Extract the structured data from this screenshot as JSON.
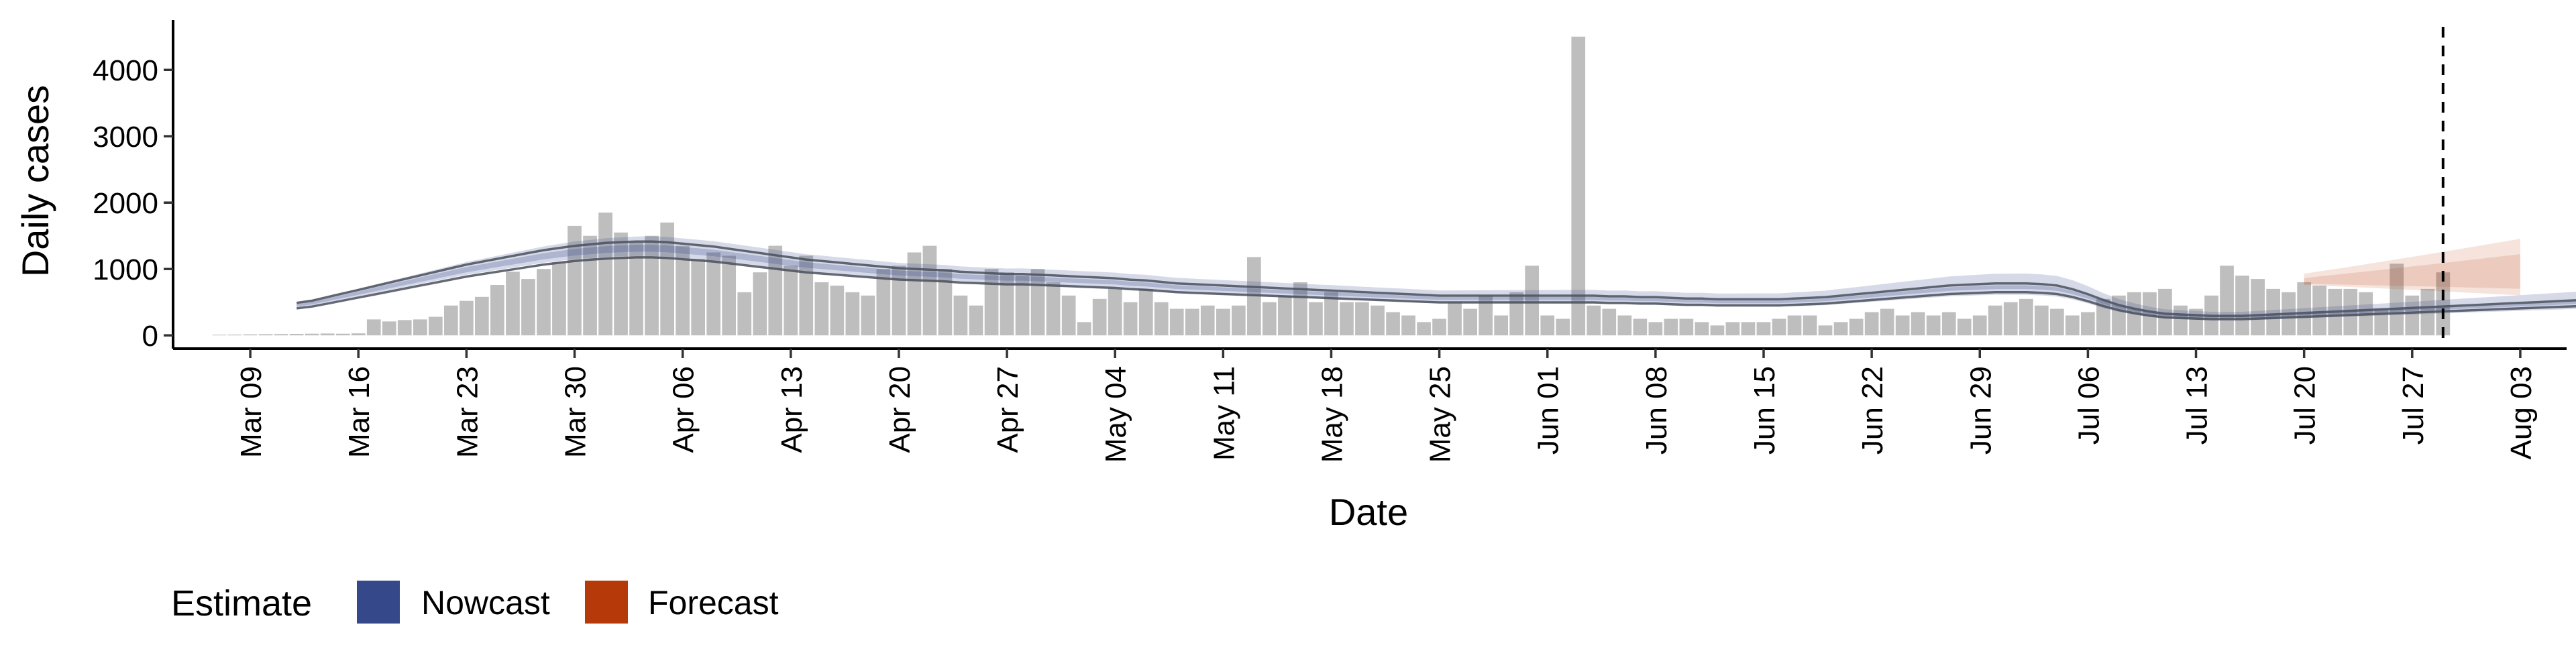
{
  "chart_data": {
    "type": "bar",
    "xlabel": "Date",
    "ylabel": "Daily cases",
    "x_ticks": [
      "Mar 09",
      "Mar 16",
      "Mar 23",
      "Mar 30",
      "Apr 06",
      "Apr 13",
      "Apr 20",
      "Apr 27",
      "May 04",
      "May 11",
      "May 18",
      "May 25",
      "Jun 01",
      "Jun 08",
      "Jun 15",
      "Jun 22",
      "Jun 29",
      "Jul 06",
      "Jul 13",
      "Jul 20",
      "Jul 27",
      "Aug 03"
    ],
    "y_ticks": [
      0,
      1000,
      2000,
      3000,
      4000
    ],
    "ylim": [
      -200,
      4750
    ],
    "xlim_start": "2020-03-04",
    "xlim_end": "2020-08-06",
    "bars_start": "2020-03-07",
    "bar_values": [
      10,
      12,
      15,
      18,
      20,
      22,
      25,
      28,
      25,
      30,
      240,
      210,
      230,
      240,
      280,
      450,
      520,
      580,
      760,
      960,
      850,
      1000,
      1100,
      1650,
      1500,
      1850,
      1550,
      1400,
      1500,
      1700,
      1350,
      1150,
      1250,
      1200,
      650,
      950,
      1350,
      1050,
      1200,
      800,
      750,
      650,
      600,
      1000,
      1050,
      1250,
      1350,
      1000,
      600,
      450,
      1000,
      950,
      900,
      1000,
      800,
      600,
      200,
      550,
      700,
      500,
      700,
      500,
      400,
      400,
      450,
      400,
      450,
      1180,
      500,
      600,
      800,
      500,
      650,
      500,
      500,
      450,
      350,
      300,
      200,
      250,
      500,
      400,
      600,
      300,
      650,
      1050,
      300,
      250,
      4500,
      450,
      400,
      300,
      250,
      200,
      250,
      250,
      200,
      150,
      200,
      200,
      200,
      250,
      300,
      300,
      150,
      200,
      250,
      350,
      400,
      300,
      350,
      300,
      350,
      250,
      300,
      450,
      500,
      550,
      450,
      400,
      300,
      350,
      550,
      600,
      650,
      650,
      700,
      450,
      400,
      600,
      1050,
      900,
      850,
      700,
      650,
      800,
      750,
      700,
      700,
      650,
      400,
      1080,
      600,
      700,
      950
    ],
    "series": [
      {
        "name": "Nowcast",
        "color": "#34488A",
        "start": "2020-03-12",
        "values": [
          450,
          480,
          530,
          580,
          630,
          680,
          730,
          780,
          830,
          880,
          930,
          980,
          1020,
          1060,
          1100,
          1140,
          1180,
          1210,
          1240,
          1260,
          1280,
          1290,
          1300,
          1300,
          1290,
          1270,
          1250,
          1230,
          1200,
          1170,
          1140,
          1110,
          1080,
          1050,
          1030,
          1010,
          990,
          970,
          950,
          930,
          920,
          910,
          900,
          880,
          870,
          860,
          850,
          850,
          840,
          830,
          820,
          810,
          800,
          790,
          770,
          760,
          740,
          720,
          710,
          700,
          690,
          680,
          670,
          660,
          650,
          640,
          630,
          620,
          610,
          600,
          590,
          580,
          570,
          560,
          550,
          550,
          550,
          550,
          550,
          550,
          550,
          550,
          550,
          550,
          550,
          540,
          540,
          530,
          530,
          520,
          510,
          510,
          500,
          500,
          500,
          500,
          500,
          510,
          520,
          530,
          550,
          570,
          590,
          610,
          630,
          650,
          670,
          690,
          700,
          710,
          720,
          720,
          720,
          710,
          690,
          640,
          570,
          490,
          420,
          370,
          330,
          300,
          290,
          280,
          270,
          270,
          270,
          280,
          290,
          300,
          310,
          320,
          330,
          340,
          350,
          360,
          370,
          380,
          390,
          400,
          410,
          420,
          430,
          440,
          450,
          460,
          470,
          480,
          490,
          500,
          510,
          520,
          530,
          540,
          550,
          560,
          570,
          580,
          590,
          600,
          610,
          620,
          630,
          640,
          650,
          660,
          670,
          680,
          690,
          700,
          700,
          710,
          710,
          720,
          720,
          720,
          730,
          730,
          740,
          750,
          760,
          770,
          780
        ]
      },
      {
        "name": "Forecast",
        "color": "#B63A09",
        "start": "2020-07-20",
        "values": [
          800,
          805,
          810,
          815,
          820,
          825,
          830,
          835,
          840,
          845,
          850,
          855,
          860,
          865,
          870
        ]
      }
    ],
    "reference_line": {
      "date": "2020-07-29",
      "style": "dashed"
    },
    "legend": {
      "title": "Estimate",
      "position": "bottom-left",
      "items": [
        {
          "label": "Nowcast",
          "color": "#34488A"
        },
        {
          "label": "Forecast",
          "color": "#B63A09"
        }
      ]
    },
    "bar_color": "#BEBEBE",
    "grid": false
  }
}
